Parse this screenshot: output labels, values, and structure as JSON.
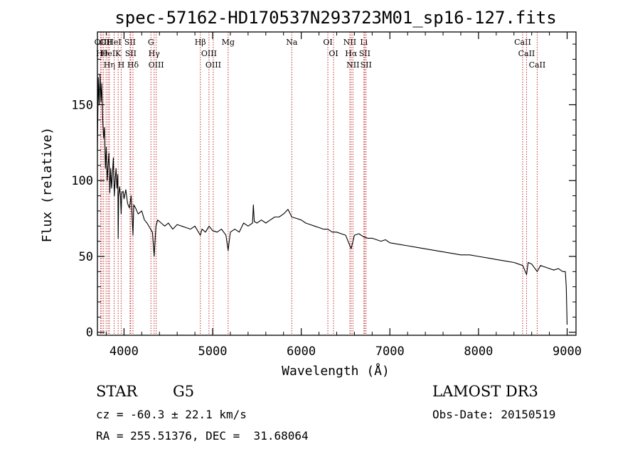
{
  "chart_data": {
    "type": "line",
    "title": "spec-57162-HD170537N293723M01_sp16-127.fits",
    "xlabel": "Wavelength (Å)",
    "ylabel": "Flux (relative)",
    "xlim": [
      3700,
      9100
    ],
    "ylim": [
      -2,
      198
    ],
    "x_ticks": [
      4000,
      5000,
      6000,
      7000,
      8000,
      9000
    ],
    "y_ticks": [
      0,
      50,
      100,
      150
    ],
    "series": [
      {
        "name": "spectrum",
        "x": [
          3700,
          3710,
          3720,
          3730,
          3740,
          3750,
          3760,
          3770,
          3780,
          3790,
          3800,
          3810,
          3820,
          3830,
          3840,
          3850,
          3860,
          3870,
          3880,
          3890,
          3900,
          3910,
          3920,
          3930,
          3934,
          3940,
          3950,
          3960,
          3968,
          3975,
          3990,
          4000,
          4020,
          4040,
          4060,
          4080,
          4101,
          4110,
          4130,
          4160,
          4200,
          4230,
          4260,
          4300,
          4320,
          4340,
          4360,
          4380,
          4420,
          4460,
          4500,
          4550,
          4600,
          4650,
          4700,
          4750,
          4800,
          4861,
          4880,
          4920,
          4960,
          5000,
          5050,
          5100,
          5150,
          5175,
          5200,
          5250,
          5300,
          5350,
          5400,
          5450,
          5460,
          5470,
          5500,
          5550,
          5600,
          5650,
          5700,
          5750,
          5800,
          5850,
          5893,
          5950,
          6000,
          6050,
          6100,
          6150,
          6200,
          6250,
          6300,
          6350,
          6400,
          6450,
          6500,
          6563,
          6600,
          6650,
          6700,
          6750,
          6800,
          6850,
          6900,
          6950,
          7000,
          7100,
          7200,
          7300,
          7400,
          7500,
          7600,
          7700,
          7800,
          7900,
          8000,
          8100,
          8200,
          8300,
          8400,
          8450,
          8500,
          8542,
          8560,
          8600,
          8662,
          8700,
          8750,
          8800,
          8850,
          8900,
          8950,
          8980,
          8990,
          9000
        ],
        "y": [
          120,
          168,
          150,
          170,
          152,
          164,
          140,
          128,
          135,
          108,
          122,
          100,
          110,
          118,
          92,
          108,
          95,
          105,
          115,
          90,
          100,
          108,
          95,
          104,
          62,
          90,
          96,
          90,
          78,
          92,
          93,
          88,
          94,
          85,
          82,
          90,
          64,
          84,
          82,
          78,
          80,
          74,
          72,
          68,
          66,
          50,
          70,
          74,
          72,
          70,
          72,
          68,
          71,
          70,
          69,
          68,
          70,
          64,
          68,
          66,
          70,
          67,
          66,
          68,
          64,
          54,
          66,
          68,
          66,
          72,
          70,
          72,
          84,
          73,
          72,
          74,
          72,
          74,
          76,
          76,
          78,
          81,
          76,
          75,
          74,
          72,
          71,
          70,
          69,
          68,
          68,
          66,
          66,
          65,
          64,
          55,
          64,
          65,
          63,
          62,
          62,
          61,
          60,
          61,
          59,
          58,
          57,
          56,
          55,
          54,
          53,
          52,
          51,
          51,
          50,
          49,
          48,
          47,
          46,
          45,
          44,
          38,
          46,
          45,
          40,
          44,
          43,
          42,
          41,
          42,
          40,
          40,
          30,
          5
        ]
      }
    ],
    "line_groups": [
      {
        "x": [
          3736,
          3750,
          3770
        ],
        "labels": [
          "OII",
          "Hθ",
          ""
        ]
      },
      {
        "x": [
          3798,
          3820,
          3835
        ],
        "labels": [
          "OII",
          "HeI",
          "Hη"
        ]
      },
      {
        "x": [
          3889,
          3934,
          3968
        ],
        "labels": [
          "HeI",
          "K",
          "H"
        ]
      },
      {
        "x": [
          4068,
          4076,
          4101
        ],
        "labels": [
          "SII",
          "SII",
          "Hδ"
        ]
      },
      {
        "x": [
          4304,
          4340,
          4363
        ],
        "labels": [
          "G",
          "Hγ",
          "OIII"
        ]
      },
      {
        "x": [
          4861,
          4959,
          5007
        ],
        "labels": [
          "Hβ",
          "OIII",
          "OIII"
        ]
      },
      {
        "x": [
          5175
        ],
        "labels": [
          "Mg"
        ]
      },
      {
        "x": [
          5893
        ],
        "labels": [
          "Na"
        ]
      },
      {
        "x": [
          6300,
          6364
        ],
        "labels": [
          "OI",
          "OI"
        ]
      },
      {
        "x": [
          6548,
          6563,
          6583
        ],
        "labels": [
          "NII",
          "Hα",
          "NII"
        ]
      },
      {
        "x": [
          6707,
          6716,
          6731
        ],
        "labels": [
          "Li",
          "SII",
          "SII"
        ]
      },
      {
        "x": [
          8498,
          8542,
          8662
        ],
        "labels": [
          "CaII",
          "CaII",
          "CaII"
        ]
      }
    ]
  },
  "info": {
    "object_class": "STAR",
    "subclass": "G5",
    "survey": "LAMOST DR3",
    "redshift": "cz = -60.3 ± 22.1 km/s",
    "obs_date": "Obs-Date: 20150519",
    "coords": "RA = 255.51376, DEC =  31.68064"
  },
  "colors": {
    "line": "#000000",
    "marker": "#c03030",
    "axis": "#000000"
  }
}
